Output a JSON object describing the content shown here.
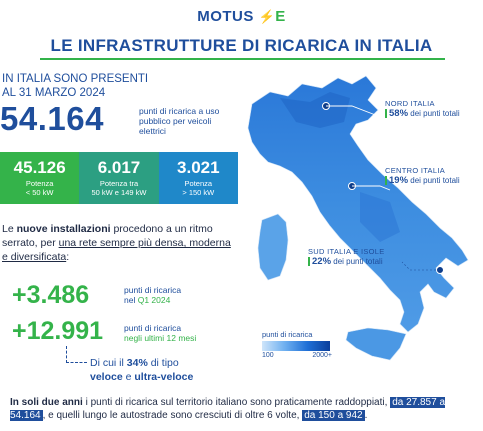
{
  "header": {
    "logo_text": "MOTUS",
    "logo_e": "E",
    "title": "LE INFRASTRUTTURE DI RICARICA IN ITALIA"
  },
  "intro": {
    "line1": "IN ITALIA SONO PRESENTI",
    "line2": "AL 31 MARZO 2024",
    "total": "54.164",
    "total_desc": "punti di ricarica a uso pubblico per veicoli elettrici"
  },
  "tiles": [
    {
      "value": "45.126",
      "label1": "Potenza",
      "label2": "< 50 kW"
    },
    {
      "value": "6.017",
      "label1": "Potenza tra",
      "label2": "50 kW e 149 kW"
    },
    {
      "value": "3.021",
      "label1": "Potenza",
      "label2": "> 150 kW"
    }
  ],
  "paragraph": {
    "p1": "Le ",
    "p2": "nuove installazioni",
    "p3": " procedono a un ritmo serrato, per ",
    "p4": "una rete sempre più densa, moderna e diversificata",
    "p5": ":"
  },
  "stats": {
    "q1_value": "+3.486",
    "q1_desc1": "punti di ricarica",
    "q1_desc2": "nel ",
    "q1_desc3": "Q1 2024",
    "y_value": "+12.991",
    "y_desc1": "punti di ricarica",
    "y_desc2": "negli ultimi 12 mesi",
    "fast1": "Di cui il ",
    "fast2": "34%",
    "fast3": " di tipo",
    "fast4": "veloce",
    "fast5": " e ",
    "fast6": "ultra-veloce"
  },
  "regions": [
    {
      "name": "NORD ITALIA",
      "pct": "58%",
      "desc": " dei punti totali"
    },
    {
      "name": "CENTRO ITALIA",
      "pct": "19%",
      "desc": " dei punti totali"
    },
    {
      "name": "SUD ITALIA E ISOLE",
      "pct": "22%",
      "desc": " dei punti totali"
    }
  ],
  "legend": {
    "title": "punti di ricarica",
    "min": "100",
    "max": "2000+"
  },
  "footer": {
    "f1": "In soli due anni",
    "f2": " i punti di ricarica sul territorio italiano sono praticamente raddoppiati, ",
    "f3": "da 27.857 a 54.164",
    "f4": ", e quelli lungo le autostrade sono cresciuti di oltre 6 volte, ",
    "f5": "da 150 a 942",
    "f6": "."
  },
  "colors": {
    "brand_blue": "#1f4e9c",
    "brand_green": "#34b34a",
    "teal": "#2c9f82",
    "light_blue": "#1f88c9"
  }
}
